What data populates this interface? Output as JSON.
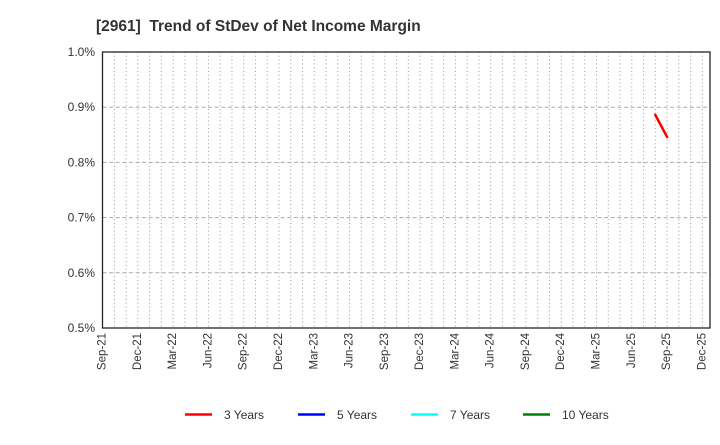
{
  "title": "[2961]  Trend of StDev of Net Income Margin",
  "colors": {
    "text": "#333333",
    "plot_border": "#262626",
    "grid_minor_vertical": "#999999",
    "grid_major_horizontal": "#aaaaaa",
    "background": "#ffffff",
    "series_red": "#ff0000",
    "series_blue": "#0000ff",
    "series_cyan": "#00ffff",
    "series_green": "#008000"
  },
  "chart_data": {
    "type": "line",
    "title": "[2961]  Trend of StDev of Net Income Margin",
    "xlabel": "",
    "ylabel": "",
    "y_axis": {
      "unit": "%",
      "min": 0.5,
      "max": 1.0,
      "tick_step": 0.1,
      "tick_labels": [
        "1.0%",
        "0.9%",
        "0.8%",
        "0.7%",
        "0.6%",
        "0.5%"
      ]
    },
    "x_axis": {
      "start": "Sep-21",
      "end": "Dec-25",
      "tick_labels": [
        "Sep-21",
        "Dec-21",
        "Mar-22",
        "Jun-22",
        "Sep-22",
        "Dec-22",
        "Mar-23",
        "Jun-23",
        "Sep-23",
        "Dec-23",
        "Mar-24",
        "Jun-24",
        "Sep-24",
        "Dec-24",
        "Mar-25",
        "Jun-25",
        "Sep-25",
        "Dec-25"
      ],
      "minor_gridlines": "monthly"
    },
    "grid": true,
    "legend_position": "bottom",
    "series": [
      {
        "name": "3 Years",
        "color": "#ff0000",
        "points": [
          {
            "x": "Aug-25",
            "y": 0.886
          },
          {
            "x": "Sep-25",
            "y": 0.846
          }
        ]
      },
      {
        "name": "5 Years",
        "color": "#0000ff",
        "points": []
      },
      {
        "name": "7 Years",
        "color": "#00ffff",
        "points": []
      },
      {
        "name": "10 Years",
        "color": "#008000",
        "points": []
      }
    ]
  }
}
